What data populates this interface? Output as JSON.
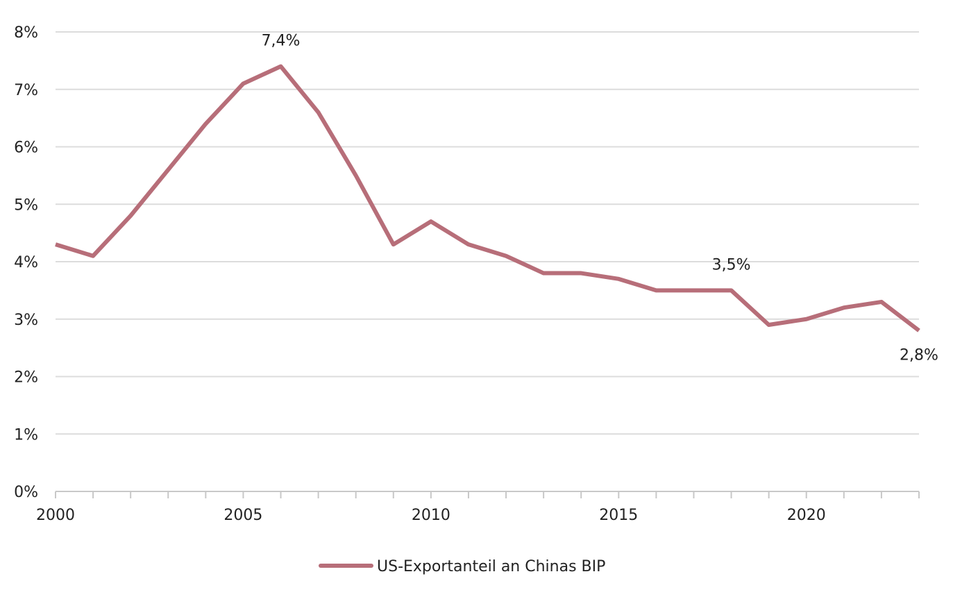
{
  "chart_data": {
    "type": "line",
    "title": "",
    "xlabel": "",
    "ylabel": "",
    "x": [
      2000,
      2001,
      2002,
      2003,
      2004,
      2005,
      2006,
      2007,
      2008,
      2009,
      2010,
      2011,
      2012,
      2013,
      2014,
      2015,
      2016,
      2017,
      2018,
      2019,
      2020,
      2021,
      2022,
      2023
    ],
    "series": [
      {
        "name": "US-Exportanteil an Chinas BIP",
        "color": "#b76e79",
        "values": [
          4.3,
          4.1,
          4.8,
          5.6,
          6.4,
          7.1,
          7.4,
          6.6,
          5.5,
          4.3,
          4.7,
          4.3,
          4.1,
          3.8,
          3.8,
          3.7,
          3.5,
          3.5,
          3.5,
          2.9,
          3.0,
          3.2,
          3.3,
          2.8
        ]
      }
    ],
    "xlim": [
      2000,
      2023
    ],
    "ylim": [
      0,
      8
    ],
    "y_ticks": [
      {
        "value": 0,
        "label": "0%"
      },
      {
        "value": 1,
        "label": "1%"
      },
      {
        "value": 2,
        "label": "2%"
      },
      {
        "value": 3,
        "label": "3%"
      },
      {
        "value": 4,
        "label": "4%"
      },
      {
        "value": 5,
        "label": "5%"
      },
      {
        "value": 6,
        "label": "6%"
      },
      {
        "value": 7,
        "label": "7%"
      },
      {
        "value": 8,
        "label": "8%"
      }
    ],
    "x_ticks": [
      {
        "value": 2000,
        "label": "2000"
      },
      {
        "value": 2005,
        "label": "2005"
      },
      {
        "value": 2010,
        "label": "2010"
      },
      {
        "value": 2015,
        "label": "2015"
      },
      {
        "value": 2020,
        "label": "2020"
      }
    ],
    "annotations": [
      {
        "x": 2006,
        "y": 7.4,
        "text": "7,4%",
        "position": "above"
      },
      {
        "x": 2018,
        "y": 3.5,
        "text": "3,5%",
        "position": "above"
      },
      {
        "x": 2023,
        "y": 2.8,
        "text": "2,8%",
        "position": "below"
      }
    ],
    "grid": true,
    "legend": "bottom-center"
  }
}
